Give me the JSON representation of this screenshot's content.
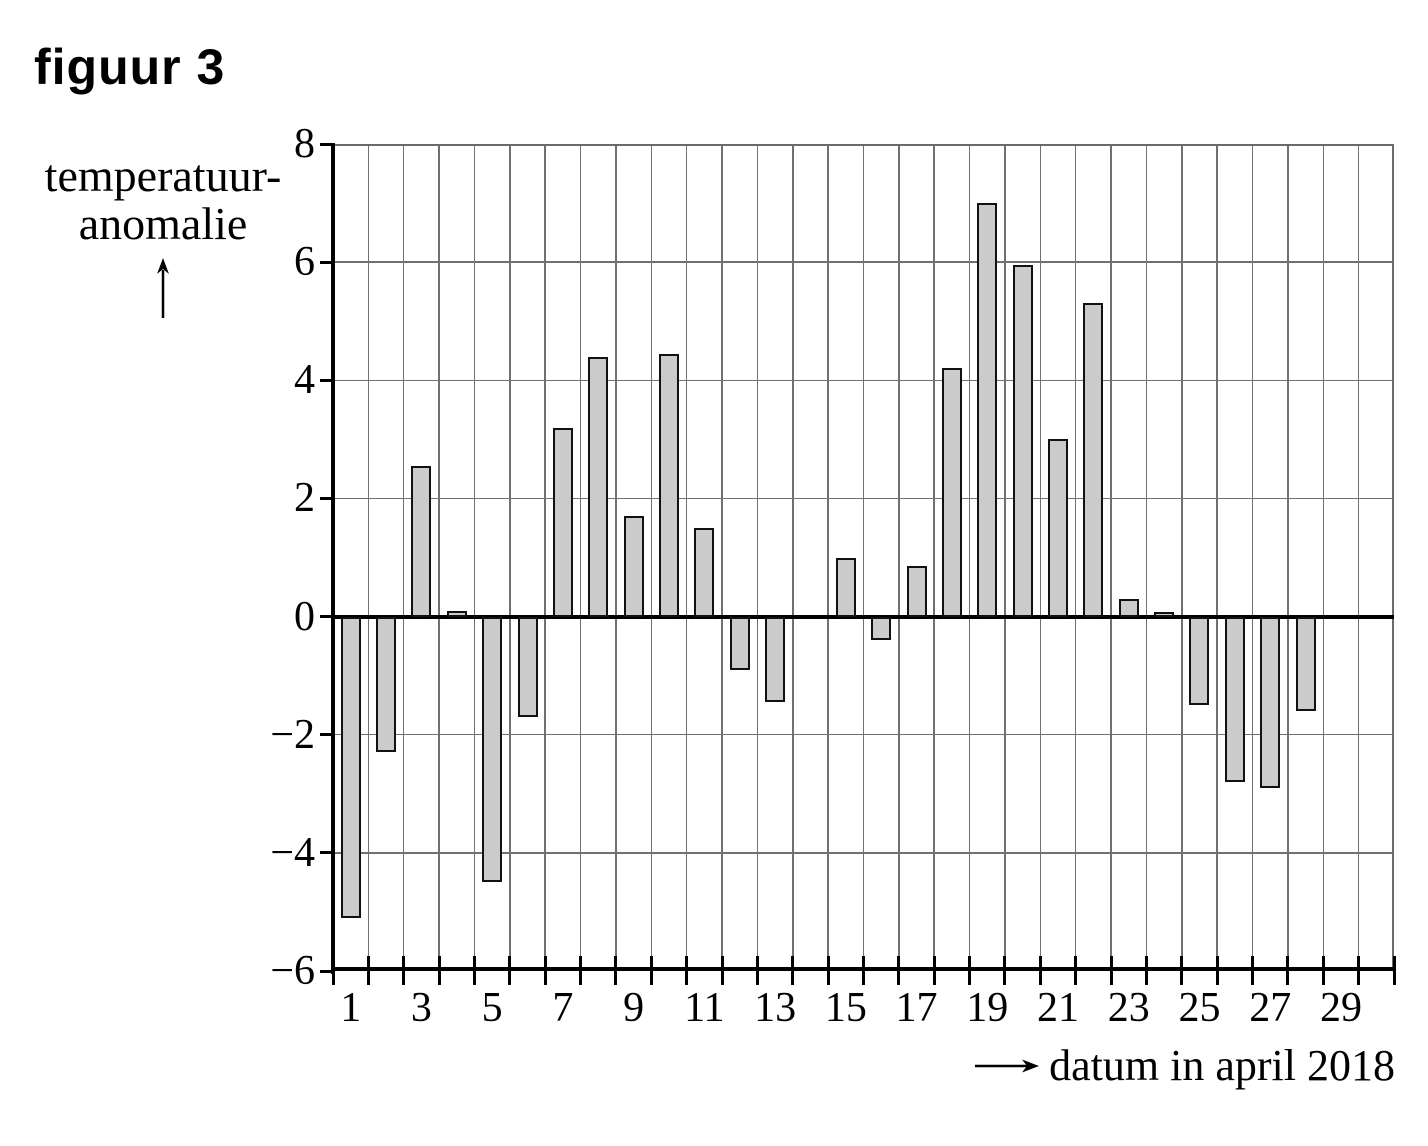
{
  "figure_label": "figuur 3",
  "y_axis": {
    "label_line1": "temperatuur-",
    "label_line2": "anomalie",
    "tick_labels": [
      "8",
      "6",
      "4",
      "2",
      "0",
      "−2",
      "−4",
      "−6"
    ],
    "tick_values": [
      8,
      6,
      4,
      2,
      0,
      -2,
      -4,
      -6
    ]
  },
  "x_axis": {
    "label": "datum in april 2018",
    "tick_labels": [
      "1",
      "3",
      "5",
      "7",
      "9",
      "11",
      "13",
      "15",
      "17",
      "19",
      "21",
      "23",
      "25",
      "27",
      "29"
    ],
    "tick_days": [
      1,
      3,
      5,
      7,
      9,
      11,
      13,
      15,
      17,
      19,
      21,
      23,
      25,
      27,
      29
    ]
  },
  "chart_data": {
    "type": "bar",
    "title": "figuur 3",
    "xlabel": "datum in april 2018",
    "ylabel": "temperatuur-anomalie",
    "x": [
      1,
      2,
      3,
      4,
      5,
      6,
      7,
      8,
      9,
      10,
      11,
      12,
      13,
      14,
      15,
      16,
      17,
      18,
      19,
      20,
      21,
      22,
      23,
      24,
      25,
      26,
      27,
      28,
      29,
      30
    ],
    "values": [
      -5.1,
      -2.3,
      2.55,
      0.1,
      -4.5,
      -1.7,
      3.2,
      4.4,
      1.7,
      4.45,
      1.5,
      -0.9,
      -1.45,
      null,
      1.0,
      -0.4,
      0.85,
      4.2,
      7.0,
      5.95,
      3.0,
      5.3,
      0.3,
      0.05,
      -1.5,
      -2.8,
      -2.9,
      -1.6,
      null,
      null
    ],
    "ylim": [
      -6,
      8
    ],
    "y_tick_step": 2,
    "x_days_total": 30,
    "grid": "both",
    "legend": "none"
  },
  "colors": {
    "background": "#ffffff",
    "bar_fill": "#cbcbcb",
    "bar_border": "#111111",
    "grid_line": "#707070",
    "axis_line": "#000000"
  }
}
